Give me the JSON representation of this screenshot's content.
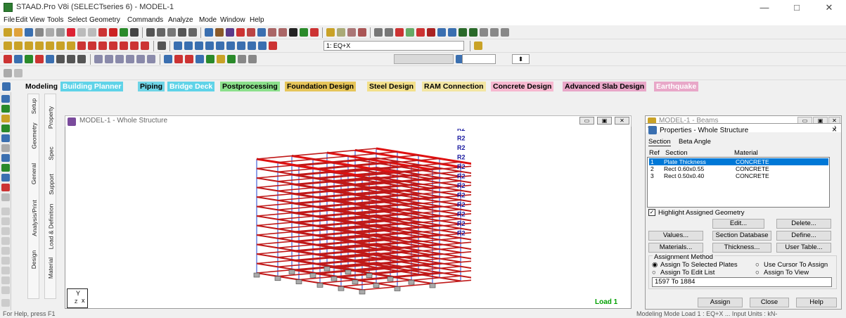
{
  "window": {
    "title": "STAAD.Pro V8i (SELECTseries 6) - MODEL-1",
    "minimize": "—",
    "maximize": "□",
    "close": "✕"
  },
  "menu": [
    "File",
    "Edit",
    "View",
    "Tools",
    "Select",
    "Geometry",
    "Commands",
    "Analyze",
    "Mode",
    "Window",
    "Help"
  ],
  "toolbar": {
    "load_combo": "1: EQ+X",
    "help_icon": "?"
  },
  "ribbon_tabs": [
    {
      "label": "Modeling",
      "color": "#000000",
      "bg": "#f0f0f0"
    },
    {
      "label": "Building Planner",
      "color": "#ffffff",
      "bg": "#5fd3e8"
    },
    {
      "label": "Piping",
      "color": "#000000",
      "bg": "#6fd4e6"
    },
    {
      "label": "Bridge Deck",
      "color": "#ffffff",
      "bg": "#5fd3e8"
    },
    {
      "label": "Postprocessing",
      "color": "#000000",
      "bg": "#8be08b"
    },
    {
      "label": "Foundation Design",
      "color": "#000000",
      "bg": "#e6c55a"
    },
    {
      "label": "Steel Design",
      "color": "#000000",
      "bg": "#f3e08a"
    },
    {
      "label": "RAM Connection",
      "color": "#000000",
      "bg": "#f3e6a2"
    },
    {
      "label": "Concrete Design",
      "color": "#000000",
      "bg": "#f7b8d0"
    },
    {
      "label": "Advanced Slab Design",
      "color": "#000000",
      "bg": "#e8a7c8"
    },
    {
      "label": "Earthquake",
      "color": "#ffffff",
      "bg": "#e8a7c8"
    }
  ],
  "side_tabs_a": [
    "Setup",
    "Geometry",
    "General",
    "Analysis/Print",
    "Design"
  ],
  "side_tabs_b": [
    "Property",
    "Spec",
    "Support",
    "Load & Definition",
    "Material"
  ],
  "viewport": {
    "title": "MODEL-1 - Whole Structure",
    "load_label": "Load 1",
    "axis_y": "Y",
    "axis_x": "x",
    "axis_z": "Z",
    "support_label": "R2",
    "plate_label": "R3"
  },
  "beams_window": {
    "title": "MODEL-1 - Beams"
  },
  "properties": {
    "title": "Properties - Whole Structure",
    "tabs": [
      "Section",
      "Beta Angle"
    ],
    "col_ref": "Ref",
    "col_section": "Section",
    "col_material": "Material",
    "rows": [
      {
        "ref": "1",
        "section": "Plate Thickness",
        "material": "CONCRETE"
      },
      {
        "ref": "2",
        "section": "Rect 0.60x0.55",
        "material": "CONCRETE"
      },
      {
        "ref": "3",
        "section": "Rect 0.50x0.40",
        "material": "CONCRETE"
      }
    ],
    "highlight_label": "Highlight Assigned Geometry",
    "buttons": {
      "edit": "Edit...",
      "delete": "Delete...",
      "values": "Values...",
      "section_db": "Section Database",
      "define": "Define...",
      "materials": "Materials...",
      "thickness": "Thickness...",
      "user_table": "User Table..."
    },
    "assignment_method": "Assignment Method",
    "options": [
      "Assign To Selected Plates",
      "Use Cursor To Assign",
      "Assign To Edit List",
      "Assign To View"
    ],
    "edit_list": "1597 To 1884",
    "assign": "Assign",
    "close": "Close",
    "help": "Help"
  },
  "status": {
    "left": "For Help, press F1",
    "right": "Modeling Mode   Load 1 : EQ+X   ...   Input Units : kN-"
  }
}
